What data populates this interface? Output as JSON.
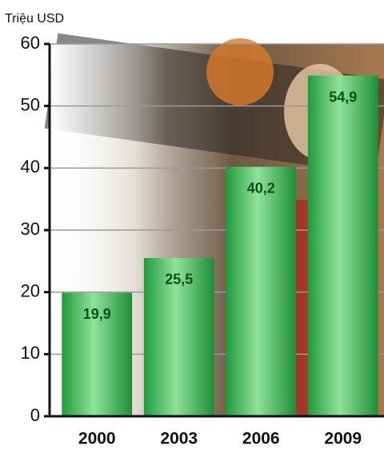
{
  "chart_data": {
    "type": "bar",
    "y_label": "Triệu USD",
    "categories": [
      "2000",
      "2003",
      "2006",
      "2009"
    ],
    "values": [
      19.9,
      25.5,
      40.2,
      54.9
    ],
    "value_labels": [
      "19,9",
      "25,5",
      "40,2",
      "54,9"
    ],
    "ylim": [
      0,
      60
    ],
    "yticks": [
      0,
      10,
      20,
      30,
      40,
      50,
      60
    ],
    "grid": true
  }
}
